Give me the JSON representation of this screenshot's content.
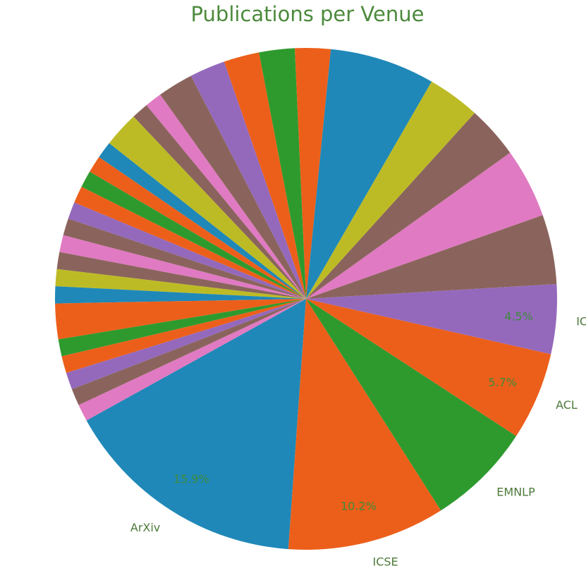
{
  "chart_data": {
    "type": "pie",
    "title": "Publications per Venue",
    "categories": [
      "ArXiv",
      "ICSE",
      "EMNLP",
      "ACL",
      "ICLR",
      "",
      "",
      "",
      "",
      "",
      "",
      "",
      "",
      "",
      "",
      "",
      "",
      "",
      "",
      "",
      "",
      "",
      "",
      "",
      "",
      "",
      "",
      "",
      "",
      "",
      "",
      "",
      "",
      ""
    ],
    "values": [
      15.9,
      10.2,
      6.8,
      5.7,
      4.5,
      4.5,
      4.5,
      3.4,
      3.4,
      6.8,
      2.3,
      2.3,
      2.3,
      2.3,
      2.3,
      1.1,
      1.1,
      2.3,
      1.1,
      1.1,
      1.1,
      1.1,
      1.1,
      1.1,
      1.1,
      1.1,
      1.1,
      1.1,
      2.3,
      1.1,
      1.1,
      1.1,
      1.1,
      1.1
    ],
    "percent_labels": [
      "15.9%",
      "10.2%",
      "",
      "5.7%",
      "4.5%",
      "",
      "",
      "",
      "",
      "",
      "",
      "",
      "",
      "",
      "",
      "",
      "",
      "",
      "",
      "",
      "",
      "",
      "",
      "",
      "",
      "",
      "",
      "",
      "",
      "",
      "",
      "",
      "",
      ""
    ],
    "colors": [
      "#1f88b8",
      "#ec5f1a",
      "#2e9a2e",
      "#ec5f1a",
      "#9469bc",
      "#8a645c",
      "#e07ac2",
      "#8a645c",
      "#bdbb25",
      "#1f88b8",
      "#ec5f1a",
      "#2e9a2e",
      "#ec5f1a",
      "#9469bc",
      "#8a645c",
      "#e07ac2",
      "#8a645c",
      "#bdbb25",
      "#1f88b8",
      "#ec5f1a",
      "#2e9a2e",
      "#ec5f1a",
      "#9469bc",
      "#8a645c",
      "#e07ac2",
      "#8a645c",
      "#bdbb25",
      "#1f88b8",
      "#ec5f1a",
      "#2e9a2e",
      "#ec5f1a",
      "#9469bc",
      "#8a645c",
      "#e07ac2"
    ],
    "start_angle_deg": 209,
    "direction": "counterclockwise",
    "legend": "none"
  }
}
